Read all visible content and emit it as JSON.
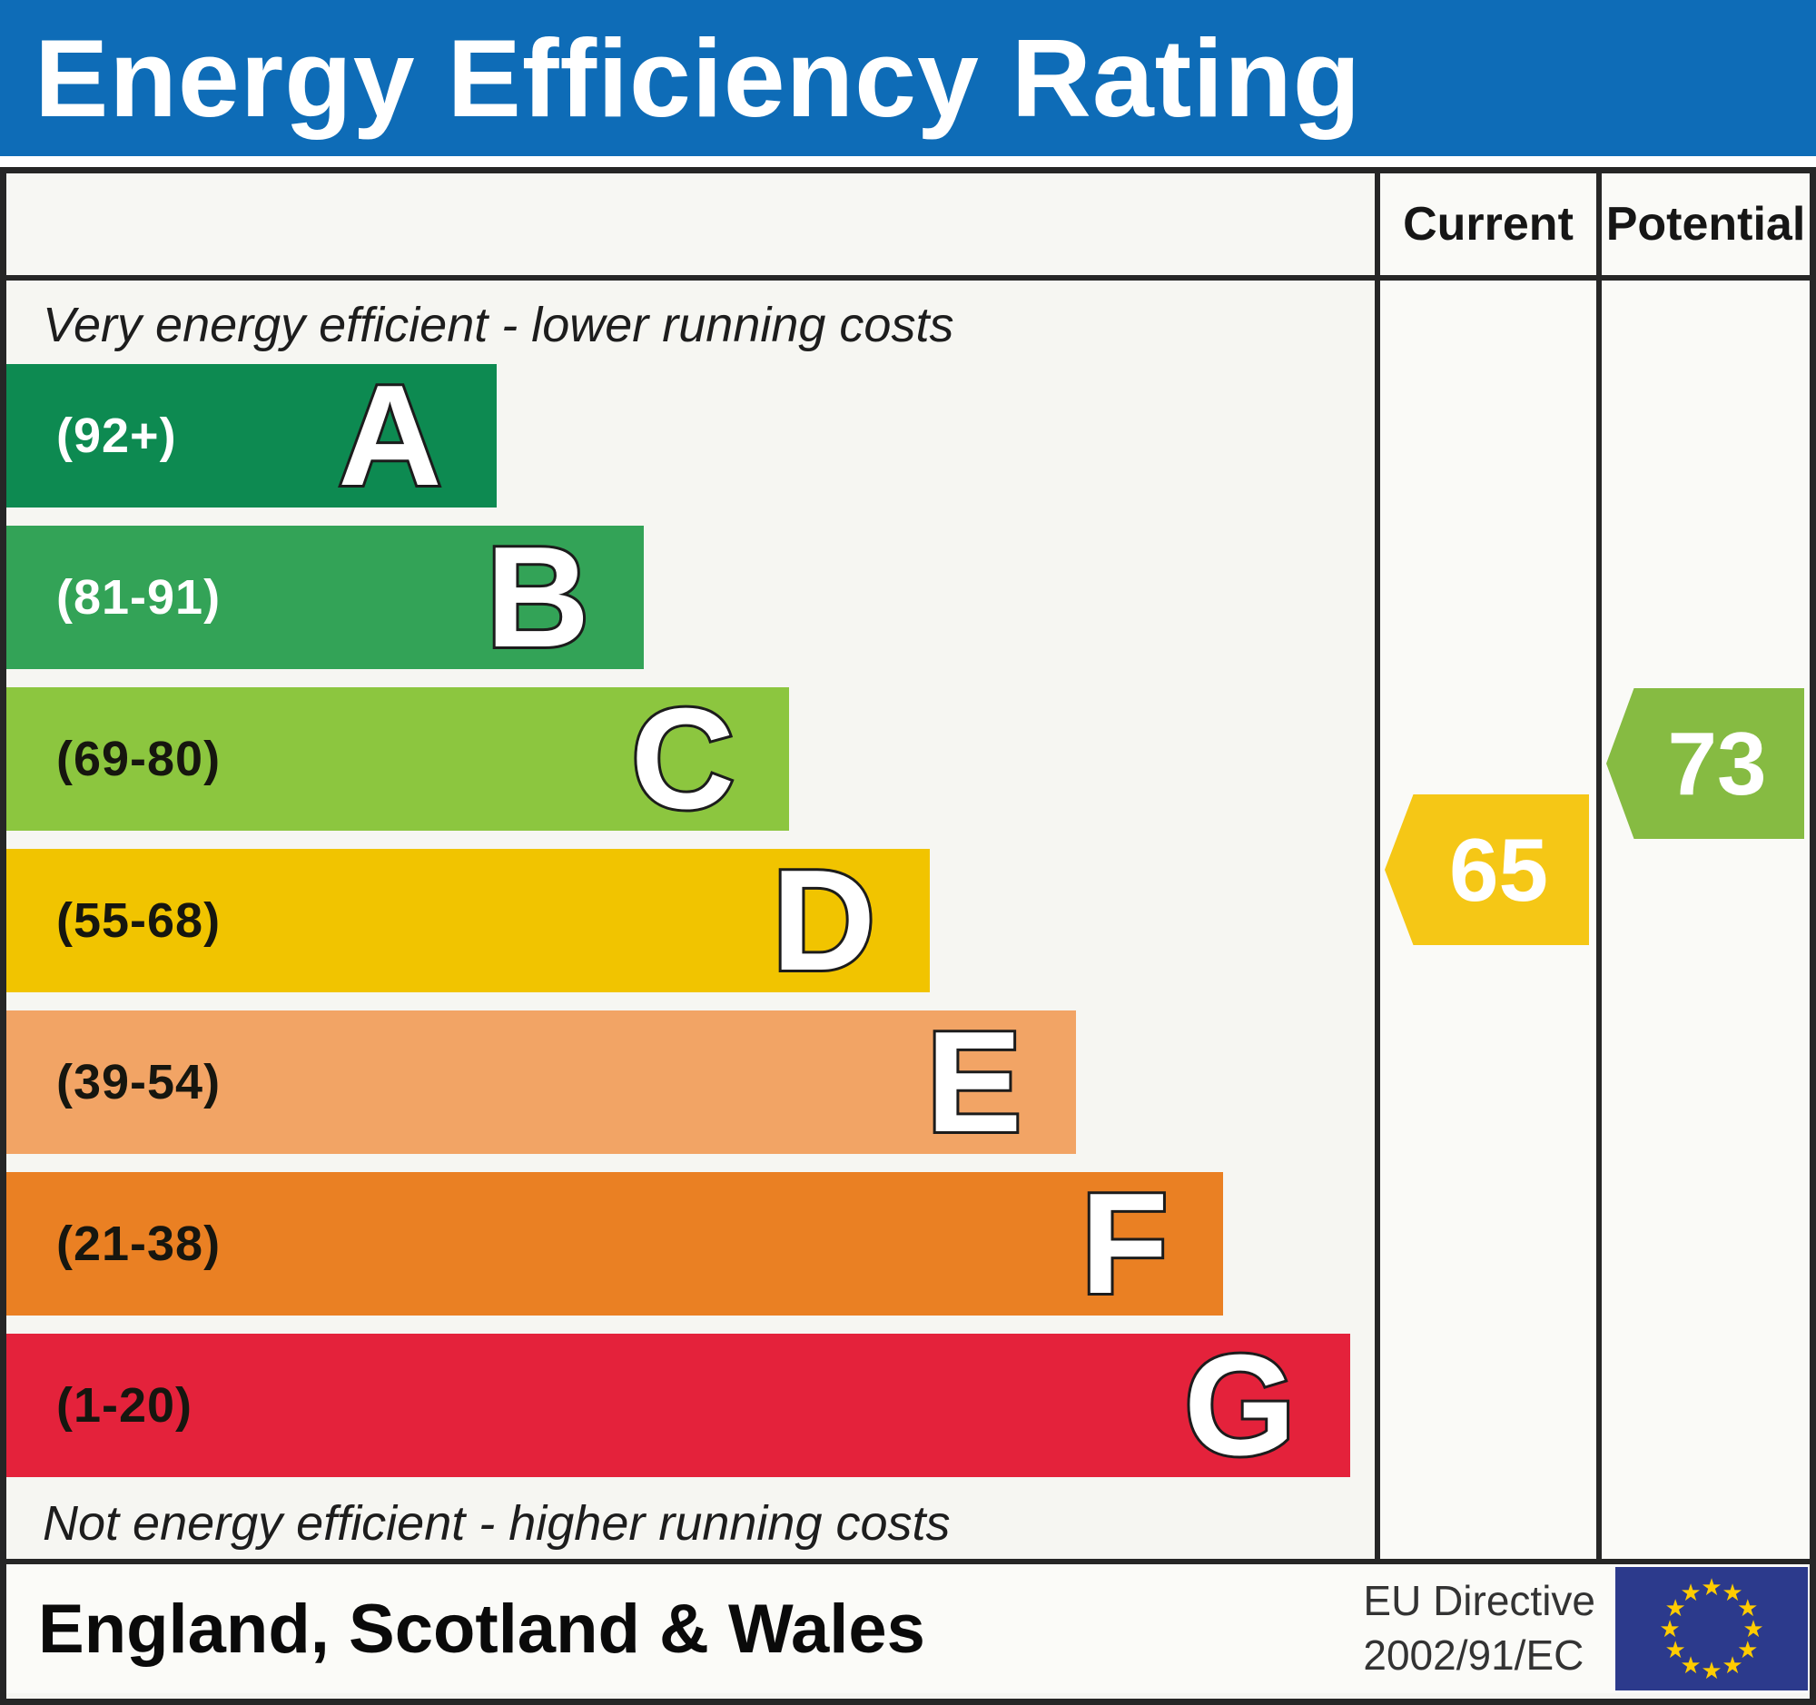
{
  "title": "Energy Efficiency Rating",
  "columns": {
    "current": "Current",
    "potential": "Potential"
  },
  "captions": {
    "top": "Very energy efficient - lower running costs",
    "bottom": "Not energy efficient - higher running costs"
  },
  "bands": [
    {
      "letter": "A",
      "range": "(92+)",
      "color": "#0d8a51",
      "label_color": "#ffffff",
      "width": "35.8%"
    },
    {
      "letter": "B",
      "range": "(81-91)",
      "color": "#33a357",
      "label_color": "#ffffff",
      "width": "46.6%"
    },
    {
      "letter": "C",
      "range": "(69-80)",
      "color": "#8cc63f",
      "label_color": "#16160f",
      "width": "57.2%"
    },
    {
      "letter": "D",
      "range": "(55-68)",
      "color": "#f1c400",
      "label_color": "#16160f",
      "width": "67.5%"
    },
    {
      "letter": "E",
      "range": "(39-54)",
      "color": "#f2a465",
      "label_color": "#16160f",
      "width": "78.2%"
    },
    {
      "letter": "F",
      "range": "(21-38)",
      "color": "#ea8023",
      "label_color": "#16160f",
      "width": "88.9%"
    },
    {
      "letter": "G",
      "range": "(1-20)",
      "color": "#e4223b",
      "label_color": "#16160f",
      "width": "98.2%"
    }
  ],
  "ratings": {
    "current": {
      "value": "65",
      "color": "#f5c716",
      "band": "D"
    },
    "potential": {
      "value": "73",
      "color": "#86bb42",
      "band": "C"
    }
  },
  "footer": {
    "region": "England, Scotland & Wales",
    "directive_line1": "EU Directive",
    "directive_line2": "2002/91/EC",
    "eu_flag_stars": 12,
    "eu_flag_blue": "#2c3a8c",
    "eu_star_color": "#ffcc00"
  },
  "chart_data": {
    "type": "bar",
    "title": "Energy Efficiency Rating",
    "categories": [
      "A",
      "B",
      "C",
      "D",
      "E",
      "F",
      "G"
    ],
    "band_ranges": [
      "92+",
      "81-91",
      "69-80",
      "55-68",
      "39-54",
      "21-38",
      "1-20"
    ],
    "band_colors": [
      "#0d8a51",
      "#33a357",
      "#8cc63f",
      "#f1c400",
      "#f2a465",
      "#ea8023",
      "#e4223b"
    ],
    "bar_lengths_pct": [
      35.8,
      46.6,
      57.2,
      67.5,
      78.2,
      88.9,
      98.2
    ],
    "series": [
      {
        "name": "Current",
        "values": [
          65
        ],
        "band": "D",
        "color": "#f5c716"
      },
      {
        "name": "Potential",
        "values": [
          73
        ],
        "band": "C",
        "color": "#86bb42"
      }
    ],
    "value_scale": [
      1,
      100
    ],
    "annotations": [
      "Very energy efficient - lower running costs",
      "Not energy efficient - higher running costs"
    ],
    "region": "England, Scotland & Wales",
    "directive": "EU Directive 2002/91/EC",
    "legend_position": "top-right-columns",
    "grid": false
  }
}
